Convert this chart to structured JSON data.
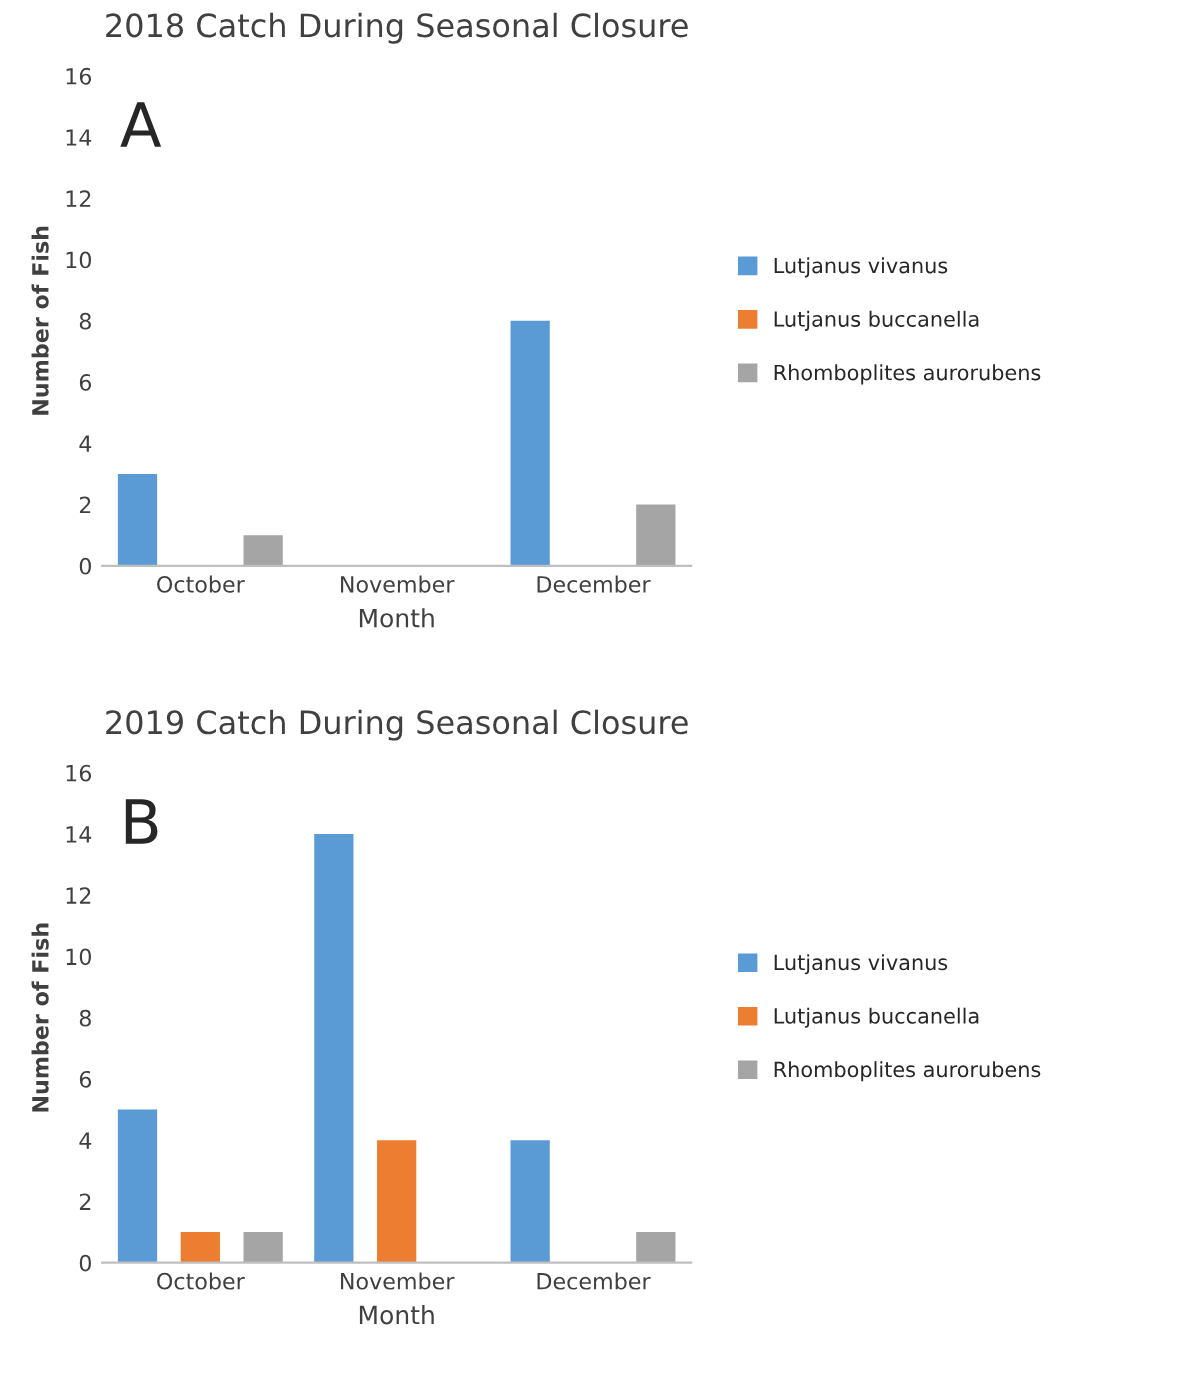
{
  "chart_data": [
    {
      "type": "bar",
      "title": "2018 Catch During Seasonal Closure",
      "xlabel": "Month",
      "ylabel": "Number of Fish",
      "categories": [
        "October",
        "November",
        "December"
      ],
      "annotations": [
        "A"
      ],
      "ylim": [
        0,
        16
      ],
      "yticks": [
        0,
        2,
        4,
        6,
        8,
        10,
        12,
        14,
        16
      ],
      "grid": false,
      "legend": "right",
      "series": [
        {
          "name": "Lutjanus vivanus",
          "color": "#5b9bd5",
          "values": [
            3,
            0,
            8
          ]
        },
        {
          "name": "Lutjanus buccanella",
          "color": "#ed7d31",
          "values": [
            0,
            0,
            0
          ]
        },
        {
          "name": "Rhomboplites aurorubens",
          "color": "#a5a5a5",
          "values": [
            1,
            0,
            2
          ]
        }
      ]
    },
    {
      "type": "bar",
      "title": "2019 Catch During Seasonal Closure",
      "xlabel": "Month",
      "ylabel": "Number of Fish",
      "categories": [
        "October",
        "November",
        "December"
      ],
      "annotations": [
        "B"
      ],
      "ylim": [
        0,
        16
      ],
      "yticks": [
        0,
        2,
        4,
        6,
        8,
        10,
        12,
        14,
        16
      ],
      "grid": false,
      "legend": "right",
      "series": [
        {
          "name": "Lutjanus vivanus",
          "color": "#5b9bd5",
          "values": [
            5,
            14,
            4
          ]
        },
        {
          "name": "Lutjanus buccanella",
          "color": "#ed7d31",
          "values": [
            1,
            4,
            0
          ]
        },
        {
          "name": "Rhomboplites aurorubens",
          "color": "#a5a5a5",
          "values": [
            1,
            0,
            1
          ]
        }
      ]
    }
  ]
}
